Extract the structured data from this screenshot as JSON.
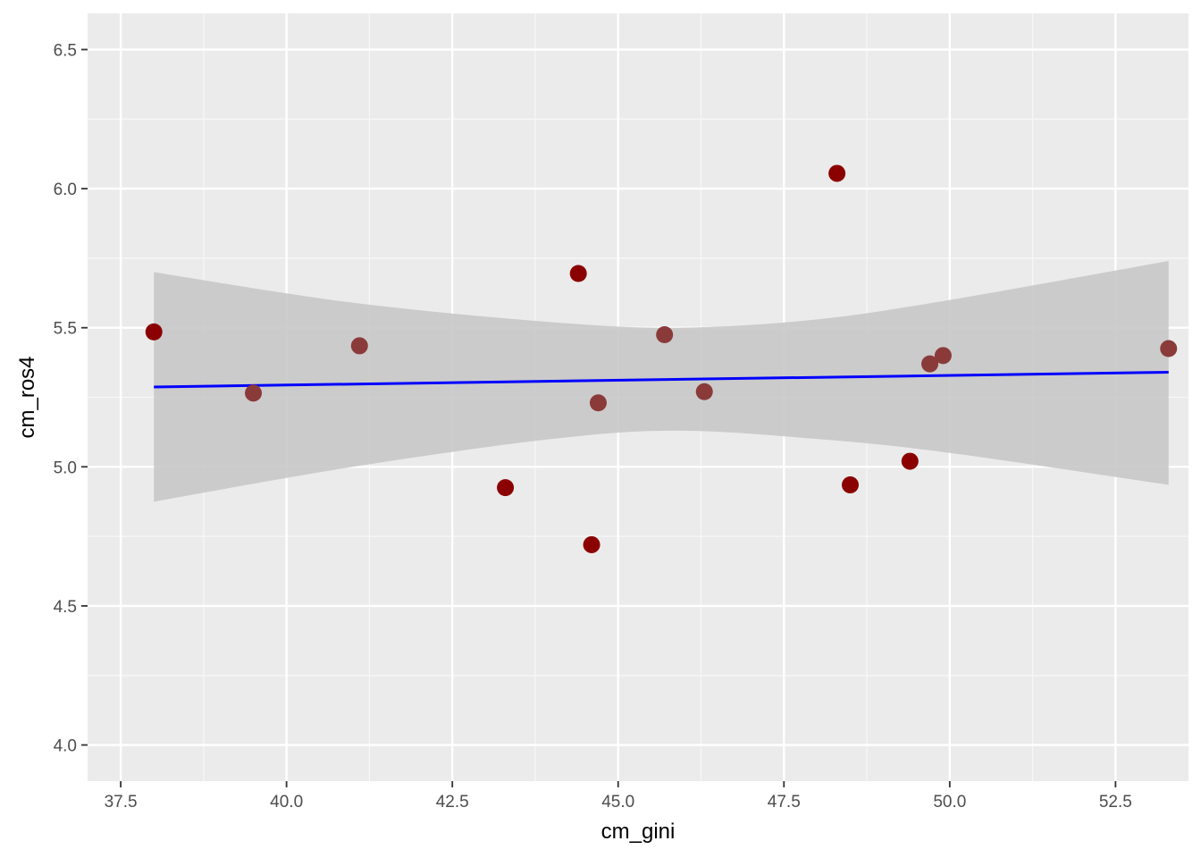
{
  "chart_data": {
    "type": "scatter",
    "title": "",
    "xlabel": "cm_gini",
    "ylabel": "cm_ros4",
    "xlim": [
      37.0,
      53.6
    ],
    "ylim": [
      3.87,
      6.63
    ],
    "x_ticks": [
      37.5,
      40.0,
      42.5,
      45.0,
      47.5,
      50.0,
      52.5
    ],
    "x_tick_labels": [
      "37.5",
      "40.0",
      "42.5",
      "45.0",
      "47.5",
      "50.0",
      "52.5"
    ],
    "y_ticks": [
      4.0,
      4.5,
      5.0,
      5.5,
      6.0,
      6.5
    ],
    "y_tick_labels": [
      "4.0",
      "4.5",
      "5.0",
      "5.5",
      "6.0",
      "6.5"
    ],
    "grid": true,
    "legend": "none",
    "colors": {
      "panel_background": "#ebebeb",
      "grid_major": "#ffffff",
      "grid_minor": "#f7f7f7",
      "point": "#8b0000",
      "point_alt": "#8b3a3a",
      "fit_line": "#0000ff",
      "confidence_band": "#c8c8c8"
    },
    "series": [
      {
        "type": "scatter",
        "points": [
          {
            "x": 38.0,
            "y": 5.485,
            "shade": "point"
          },
          {
            "x": 39.5,
            "y": 5.265,
            "shade": "point_alt"
          },
          {
            "x": 41.1,
            "y": 5.435,
            "shade": "point_alt"
          },
          {
            "x": 43.3,
            "y": 4.925,
            "shade": "point"
          },
          {
            "x": 44.4,
            "y": 5.695,
            "shade": "point"
          },
          {
            "x": 44.6,
            "y": 4.72,
            "shade": "point"
          },
          {
            "x": 44.7,
            "y": 5.23,
            "shade": "point_alt"
          },
          {
            "x": 45.7,
            "y": 5.475,
            "shade": "point_alt"
          },
          {
            "x": 46.3,
            "y": 5.27,
            "shade": "point_alt"
          },
          {
            "x": 48.3,
            "y": 6.055,
            "shade": "point"
          },
          {
            "x": 48.5,
            "y": 4.935,
            "shade": "point"
          },
          {
            "x": 49.4,
            "y": 5.02,
            "shade": "point"
          },
          {
            "x": 49.7,
            "y": 5.37,
            "shade": "point_alt"
          },
          {
            "x": 49.9,
            "y": 5.4,
            "shade": "point_alt"
          },
          {
            "x": 53.3,
            "y": 5.425,
            "shade": "point_alt"
          }
        ]
      },
      {
        "type": "line",
        "x": [
          38.0,
          53.3
        ],
        "y": [
          5.287,
          5.34
        ]
      },
      {
        "type": "area",
        "x": [
          38.0,
          41.0,
          44.0,
          45.9,
          48.0,
          50.0,
          53.3
        ],
        "upper": [
          5.7,
          5.59,
          5.52,
          5.5,
          5.53,
          5.6,
          5.74
        ],
        "lower": [
          4.875,
          5.0,
          5.1,
          5.13,
          5.1,
          5.05,
          4.935
        ]
      }
    ]
  }
}
